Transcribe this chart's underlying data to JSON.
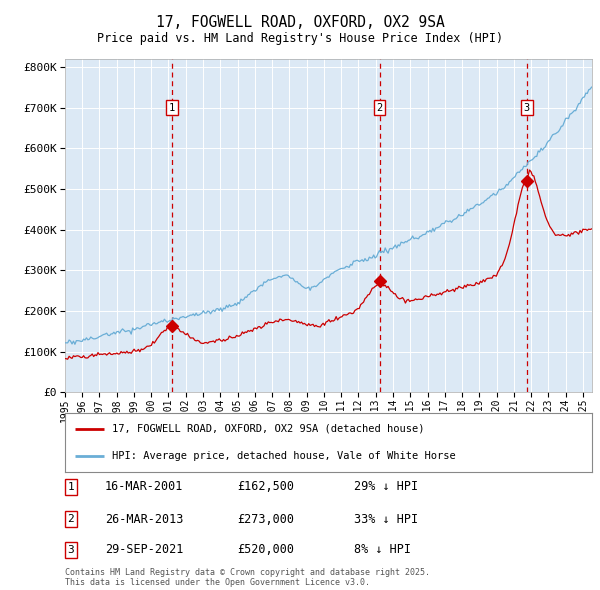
{
  "title1": "17, FOGWELL ROAD, OXFORD, OX2 9SA",
  "title2": "Price paid vs. HM Land Registry's House Price Index (HPI)",
  "background_color": "#dce9f5",
  "hpi_color": "#6aaed6",
  "price_color": "#cc0000",
  "dashed_line_color": "#cc0000",
  "sale1_date_num": 2001.21,
  "sale1_price": 162500,
  "sale1_label": "16-MAR-2001",
  "sale1_pct": "29%",
  "sale2_date_num": 2013.23,
  "sale2_price": 273000,
  "sale2_label": "26-MAR-2013",
  "sale2_pct": "33%",
  "sale3_date_num": 2021.75,
  "sale3_price": 520000,
  "sale3_label": "29-SEP-2021",
  "sale3_pct": "8%",
  "legend_line1": "17, FOGWELL ROAD, OXFORD, OX2 9SA (detached house)",
  "legend_line2": "HPI: Average price, detached house, Vale of White Horse",
  "footer1": "Contains HM Land Registry data © Crown copyright and database right 2025.",
  "footer2": "This data is licensed under the Open Government Licence v3.0.",
  "ylim_max": 820000,
  "xmin": 1995.0,
  "xmax": 2025.5
}
